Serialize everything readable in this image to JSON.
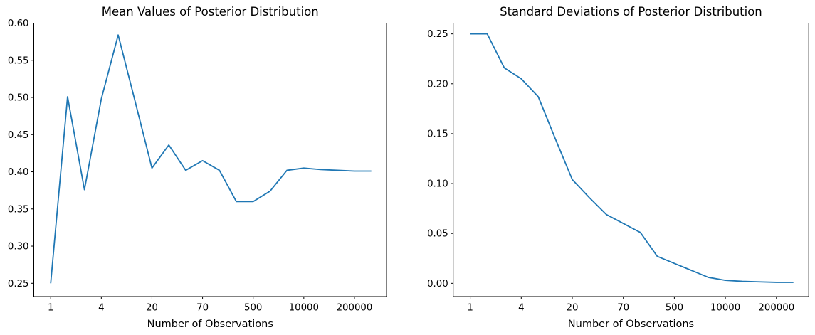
{
  "figure": {
    "background": "#ffffff",
    "line_color": "#1f77b4",
    "axis_color": "#000000",
    "text_color": "#000000"
  },
  "chart_data": [
    {
      "id": "mean",
      "type": "line",
      "title": "Mean Values of Posterior Distribution",
      "xlabel": "Number of Observations",
      "ylabel": "",
      "grid": false,
      "legend": null,
      "x_tick_positions": [
        0,
        3,
        6,
        9,
        12,
        15,
        18
      ],
      "x_tick_labels": [
        "1",
        "4",
        "20",
        "70",
        "500",
        "10000",
        "200000"
      ],
      "y_ticks": [
        0.25,
        0.3,
        0.35,
        0.4,
        0.45,
        0.5,
        0.55,
        0.6
      ],
      "y_tick_labels": [
        "0.25",
        "0.30",
        "0.35",
        "0.40",
        "0.45",
        "0.50",
        "0.55",
        "0.60"
      ],
      "xlim": [
        -1.0,
        19.9
      ],
      "ylim": [
        0.2321,
        0.6
      ],
      "values": [
        0.25,
        0.501,
        0.376,
        0.498,
        0.584,
        0.495,
        0.405,
        0.436,
        0.402,
        0.415,
        0.402,
        0.36,
        0.36,
        0.374,
        0.402,
        0.405,
        0.403,
        0.402,
        0.401,
        0.401
      ]
    },
    {
      "id": "std",
      "type": "line",
      "title": "Standard Deviations of Posterior Distribution",
      "xlabel": "Number of Observations",
      "ylabel": "",
      "grid": false,
      "legend": null,
      "x_tick_positions": [
        0,
        3,
        6,
        9,
        12,
        15,
        18
      ],
      "x_tick_labels": [
        "1",
        "4",
        "20",
        "70",
        "500",
        "10000",
        "200000"
      ],
      "y_ticks": [
        0.0,
        0.05,
        0.1,
        0.15,
        0.2,
        0.25
      ],
      "y_tick_labels": [
        "0.00",
        "0.05",
        "0.10",
        "0.15",
        "0.20",
        "0.25"
      ],
      "xlim": [
        -1.0,
        19.9
      ],
      "ylim": [
        -0.0133,
        0.2608
      ],
      "values": [
        0.25,
        0.25,
        0.216,
        0.205,
        0.187,
        0.145,
        0.104,
        0.086,
        0.069,
        0.06,
        0.051,
        0.027,
        0.02,
        0.013,
        0.006,
        0.003,
        0.002,
        0.0015,
        0.001,
        0.001
      ]
    }
  ]
}
